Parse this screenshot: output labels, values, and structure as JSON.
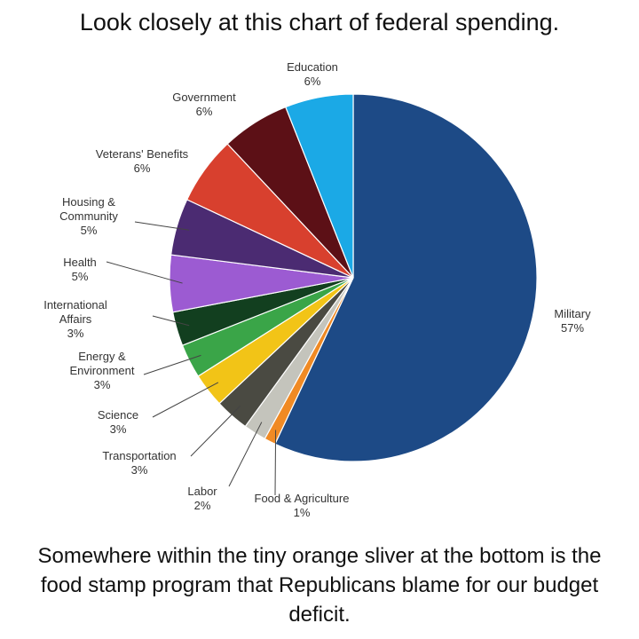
{
  "chart_data": {
    "type": "pie",
    "title": "Look closely at this chart of federal spending.",
    "categories": [
      "Military",
      "Food & Agriculture",
      "Labor",
      "Transportation",
      "Science",
      "Energy & Environment",
      "International Affairs",
      "Health",
      "Housing & Community",
      "Veterans' Benefits",
      "Government",
      "Education"
    ],
    "values": [
      57,
      1,
      2,
      3,
      3,
      3,
      3,
      5,
      5,
      6,
      6,
      6
    ],
    "value_labels": [
      "57%",
      "1%",
      "2%",
      "3%",
      "3%",
      "3%",
      "3%",
      "5%",
      "5%",
      "6%",
      "6%",
      "6%"
    ],
    "colors": [
      "#1d4a86",
      "#f08a24",
      "#c4c4bc",
      "#4a4a42",
      "#f2c417",
      "#3aa548",
      "#123f1f",
      "#9c5bd2",
      "#4b2b72",
      "#d8402e",
      "#5c1016",
      "#1ba9e6"
    ],
    "annotation": "Somewhere within the tiny orange sliver at the bottom is the food stamp program that Republicans blame for our budget deficit."
  }
}
